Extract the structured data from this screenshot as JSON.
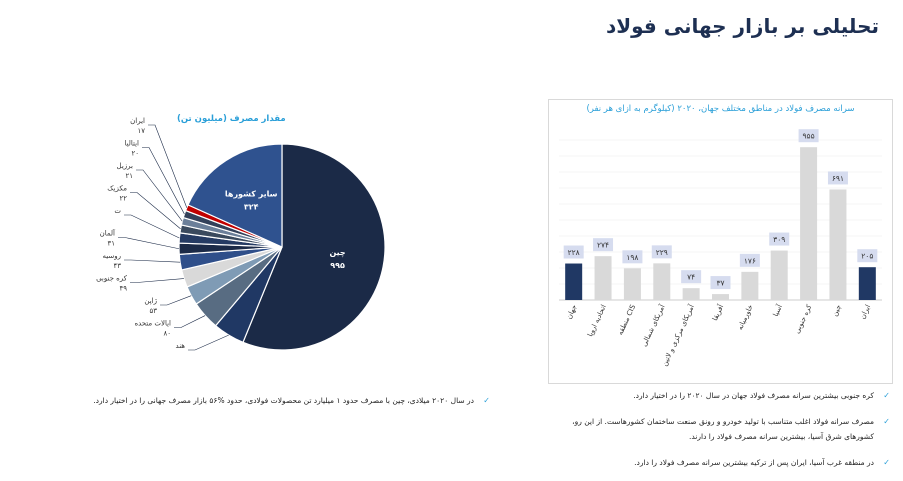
{
  "page": {
    "title": "تحلیلی بر بازار جهانی فولاد"
  },
  "chart_data": [
    {
      "type": "pie",
      "title": "مقدار مصرف (میلیون تن)",
      "slices": [
        {
          "label": "چین",
          "value": 995,
          "value_label": "۹۹۵",
          "color": "#1b2a47"
        },
        {
          "label": "هند",
          "value": 88,
          "value_label": "",
          "color": "#203864"
        },
        {
          "label": "ایالات متحده",
          "value": 80,
          "value_label": "۸۰",
          "color": "#586c82"
        },
        {
          "label": "ژاپن",
          "value": 53,
          "value_label": "۵۳",
          "color": "#7f9bb5"
        },
        {
          "label": "کره جنوبی",
          "value": 49,
          "value_label": "۴۹",
          "color": "#d9d9d9"
        },
        {
          "label": "روسیه",
          "value": 43,
          "value_label": "۴۳",
          "color": "#2f4f8a"
        },
        {
          "label": "آلمان",
          "value": 31,
          "value_label": "۳۱",
          "color": "#1b2a47"
        },
        {
          "label": "ت",
          "value": 28,
          "value_label": "",
          "color": "#253b63"
        },
        {
          "label": "مکزیک",
          "value": 22,
          "value_label": "۲۲",
          "color": "#3a4a5e"
        },
        {
          "label": "برزیل",
          "value": 21,
          "value_label": "۲۱",
          "color": "#6b7f99"
        },
        {
          "label": "ایتالیا",
          "value": 20,
          "value_label": "۲۰",
          "color": "#33415a"
        },
        {
          "label": "ایران",
          "value": 17,
          "value_label": "۱۷",
          "color": "#c00000"
        },
        {
          "label": "سایر کشورها",
          "value": 324,
          "value_label": "۳۲۴",
          "color": "#2f528f"
        }
      ]
    },
    {
      "type": "bar",
      "title": "سرانه مصرف فولاد در مناطق مختلف جهان، ۲۰۲۰ (کیلوگرم به ازای هر نفر)",
      "categories": [
        "جهان",
        "اتحادیه اروپا",
        "منطقه CIS",
        "آمریکای شمالی",
        "آمریکای مرکزی و لاتین",
        "آفریقا",
        "خاورمیانه",
        "آسیا",
        "کره جنوبی",
        "چین",
        "ایران"
      ],
      "values": [
        228,
        274,
        198,
        229,
        74,
        37,
        176,
        309,
        955,
        691,
        205
      ],
      "value_labels": [
        "۲۲۸",
        "۲۷۴",
        "۱۹۸",
        "۲۲۹",
        "۷۴",
        "۳۷",
        "۱۷۶",
        "۳۰۹",
        "۹۵۵",
        "۶۹۱",
        "۲۰۵"
      ],
      "highlight": [
        true,
        false,
        false,
        false,
        false,
        false,
        false,
        false,
        false,
        false,
        true
      ],
      "highlight_color": "#203864",
      "base_color": "#d9d9d9",
      "ylim": [
        0,
        1000
      ]
    }
  ],
  "notes": {
    "left": [
      "در سال ۲۰۲۰ میلادی، چین با مصرف حدود ۱ میلیارد تن محصولات فولادی، حدود %۵۶ بازار مصرف جهانی را در اختیار دارد."
    ],
    "right": [
      "کره جنوبی بیشترین سرانه مصرف فولاد جهان در سال ۲۰۲۰ را در اختیار دارد.",
      "مصرف سرانه فولاد اغلب متناسب با تولید خودرو و رونق صنعت ساختمان کشورهاست. از این رو، کشورهای شرق آسیا، بیشترین سرانه مصرف فولاد را دارند.",
      "در منطقه غرب آسیا، ایران پس از ترکیه بیشترین سرانه مصرف فولاد را دارد."
    ],
    "bullet": "✓"
  }
}
